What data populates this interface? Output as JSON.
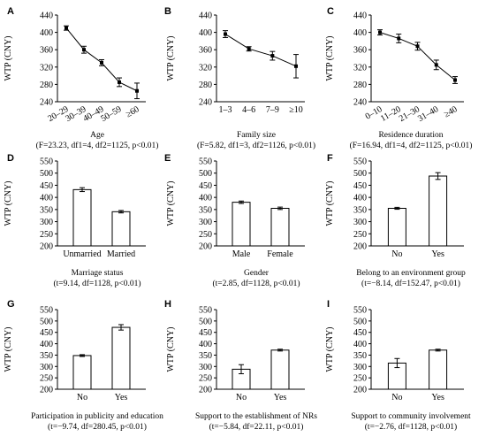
{
  "figure": {
    "panels": [
      {
        "letter": "A",
        "type": "line",
        "ylabel": "WTP (CNY)",
        "ylim": [
          240,
          440
        ],
        "yticks": [
          240,
          280,
          320,
          360,
          400,
          440
        ],
        "categories": [
          "20–29",
          "30–39",
          "40–49",
          "50–59",
          "≥60"
        ],
        "rotate_x": true,
        "values": [
          410,
          360,
          330,
          285,
          265
        ],
        "errors": [
          5,
          8,
          7,
          10,
          18
        ],
        "caption_1": "Age",
        "caption_2": "(F=23.23, df1=4, df2=1125, p<0.01)"
      },
      {
        "letter": "B",
        "type": "line",
        "ylabel": "WTP (CNY)",
        "ylim": [
          240,
          440
        ],
        "yticks": [
          240,
          280,
          320,
          360,
          400,
          440
        ],
        "categories": [
          "1–3",
          "4–6",
          "7–9",
          "≥10"
        ],
        "rotate_x": false,
        "values": [
          396,
          362,
          346,
          322
        ],
        "errors": [
          8,
          5,
          10,
          27
        ],
        "caption_1": "Family size",
        "caption_2": "(F=5.82, df1=3, df2=1126, p<0.01)"
      },
      {
        "letter": "C",
        "type": "line",
        "ylabel": "WTP (CNY)",
        "ylim": [
          240,
          440
        ],
        "yticks": [
          240,
          280,
          320,
          360,
          400,
          440
        ],
        "categories": [
          "0–10",
          "11–20",
          "21–30",
          "31–40",
          "≥40"
        ],
        "rotate_x": true,
        "values": [
          400,
          386,
          368,
          325,
          290
        ],
        "errors": [
          6,
          10,
          9,
          11,
          8
        ],
        "caption_1": "Residence duration",
        "caption_2": "(F=16.94, df1=4, df2=1125, p<0.01)"
      },
      {
        "letter": "D",
        "type": "bar",
        "ylabel": "WTP (CNY)",
        "ylim": [
          200,
          550
        ],
        "yticks": [
          200,
          250,
          300,
          350,
          400,
          450,
          500,
          550
        ],
        "categories": [
          "Unmarried",
          "Married"
        ],
        "rotate_x": false,
        "values": [
          432,
          341
        ],
        "errors": [
          8,
          5
        ],
        "caption_1": "Marriage status",
        "caption_2": "(t=9.14, df=1128, p<0.01)"
      },
      {
        "letter": "E",
        "type": "bar",
        "ylabel": "WTP (CNY)",
        "ylim": [
          200,
          550
        ],
        "yticks": [
          200,
          250,
          300,
          350,
          400,
          450,
          500,
          550
        ],
        "categories": [
          "Male",
          "Female"
        ],
        "rotate_x": false,
        "values": [
          380,
          355
        ],
        "errors": [
          5,
          5
        ],
        "caption_1": "Gender",
        "caption_2": "(t=2.85, df=1128, p<0.01)"
      },
      {
        "letter": "F",
        "type": "bar",
        "ylabel": "WTP (CNY)",
        "ylim": [
          200,
          550
        ],
        "yticks": [
          200,
          250,
          300,
          350,
          400,
          450,
          500,
          550
        ],
        "categories": [
          "No",
          "Yes"
        ],
        "rotate_x": false,
        "values": [
          355,
          488
        ],
        "errors": [
          4,
          14
        ],
        "caption_1": "Belong to an environment group",
        "caption_2": "(t=−8.14, df=152.47, p<0.01)"
      },
      {
        "letter": "G",
        "type": "bar",
        "ylabel": "WTP (CNY)",
        "ylim": [
          200,
          550
        ],
        "yticks": [
          200,
          250,
          300,
          350,
          400,
          450,
          500,
          550
        ],
        "categories": [
          "No",
          "Yes"
        ],
        "rotate_x": false,
        "values": [
          348,
          472
        ],
        "errors": [
          4,
          12
        ],
        "caption_1": "Participation in publicity and education",
        "caption_2": "(t=−9.74, df=280.45, p<0.01)"
      },
      {
        "letter": "H",
        "type": "bar",
        "ylabel": "WTP (CNY)",
        "ylim": [
          200,
          550
        ],
        "yticks": [
          200,
          250,
          300,
          350,
          400,
          450,
          500,
          550
        ],
        "categories": [
          "No",
          "Yes"
        ],
        "rotate_x": false,
        "values": [
          288,
          372
        ],
        "errors": [
          20,
          4
        ],
        "caption_1": "Support to the establishment of NRs",
        "caption_2": "(t=−5.84, df=22.11, p<0.01)"
      },
      {
        "letter": "I",
        "type": "bar",
        "ylabel": "WTP (CNY)",
        "ylim": [
          200,
          550
        ],
        "yticks": [
          200,
          250,
          300,
          350,
          400,
          450,
          500,
          550
        ],
        "categories": [
          "No",
          "Yes"
        ],
        "rotate_x": false,
        "values": [
          315,
          372
        ],
        "errors": [
          20,
          4
        ],
        "caption_1": "Support to community involvement",
        "caption_2": "(t=−2.76, df=1128, p<0.01)"
      }
    ]
  },
  "chart_data": [
    {
      "type": "line",
      "categories": [
        "20–29",
        "30–39",
        "40–49",
        "50–59",
        "≥60"
      ],
      "values": [
        410,
        360,
        330,
        285,
        265
      ],
      "errors": [
        5,
        8,
        7,
        10,
        18
      ],
      "ylabel": "WTP (CNY)",
      "xlabel": "Age",
      "ylim": [
        240,
        440
      ]
    },
    {
      "type": "line",
      "categories": [
        "1–3",
        "4–6",
        "7–9",
        "≥10"
      ],
      "values": [
        396,
        362,
        346,
        322
      ],
      "errors": [
        8,
        5,
        10,
        27
      ],
      "ylabel": "WTP (CNY)",
      "xlabel": "Family size",
      "ylim": [
        240,
        440
      ]
    },
    {
      "type": "line",
      "categories": [
        "0–10",
        "11–20",
        "21–30",
        "31–40",
        "≥40"
      ],
      "values": [
        400,
        386,
        368,
        325,
        290
      ],
      "errors": [
        6,
        10,
        9,
        11,
        8
      ],
      "ylabel": "WTP (CNY)",
      "xlabel": "Residence duration",
      "ylim": [
        240,
        440
      ]
    },
    {
      "type": "bar",
      "categories": [
        "Unmarried",
        "Married"
      ],
      "values": [
        432,
        341
      ],
      "errors": [
        8,
        5
      ],
      "ylabel": "WTP (CNY)",
      "xlabel": "Marriage status",
      "ylim": [
        200,
        550
      ]
    },
    {
      "type": "bar",
      "categories": [
        "Male",
        "Female"
      ],
      "values": [
        380,
        355
      ],
      "errors": [
        5,
        5
      ],
      "ylabel": "WTP (CNY)",
      "xlabel": "Gender",
      "ylim": [
        200,
        550
      ]
    },
    {
      "type": "bar",
      "categories": [
        "No",
        "Yes"
      ],
      "values": [
        355,
        488
      ],
      "errors": [
        4,
        14
      ],
      "ylabel": "WTP (CNY)",
      "xlabel": "Belong to an environment group",
      "ylim": [
        200,
        550
      ]
    },
    {
      "type": "bar",
      "categories": [
        "No",
        "Yes"
      ],
      "values": [
        348,
        472
      ],
      "errors": [
        4,
        12
      ],
      "ylabel": "WTP (CNY)",
      "xlabel": "Participation in publicity and education",
      "ylim": [
        200,
        550
      ]
    },
    {
      "type": "bar",
      "categories": [
        "No",
        "Yes"
      ],
      "values": [
        288,
        372
      ],
      "errors": [
        20,
        4
      ],
      "ylabel": "WTP (CNY)",
      "xlabel": "Support to the establishment of NRs",
      "ylim": [
        200,
        550
      ]
    },
    {
      "type": "bar",
      "categories": [
        "No",
        "Yes"
      ],
      "values": [
        315,
        372
      ],
      "errors": [
        20,
        4
      ],
      "ylabel": "WTP (CNY)",
      "xlabel": "Support to community involvement",
      "ylim": [
        200,
        550
      ]
    }
  ]
}
